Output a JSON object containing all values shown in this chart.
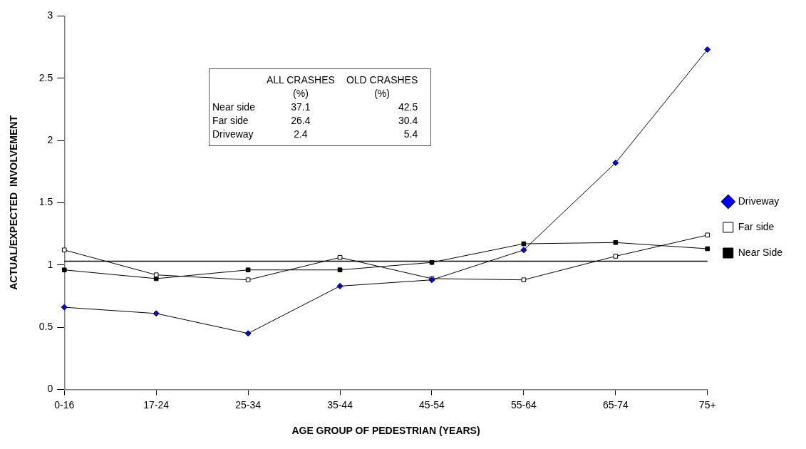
{
  "chart_data": {
    "type": "line",
    "xlabel": "AGE GROUP OF PEDESTRIAN (YEARS)",
    "ylabel": "ACTUAL/EXPECTED  INVOLVEMENT",
    "categories": [
      "0-16",
      "17-24",
      "25-34",
      "35-44",
      "45-54",
      "55-64",
      "65-74",
      "75+"
    ],
    "series": [
      {
        "name": "Near Side",
        "color": "#000000",
        "marker": "square",
        "values": [
          0.96,
          0.89,
          0.96,
          0.96,
          1.02,
          1.17,
          1.18,
          1.13
        ]
      },
      {
        "name": "Far side",
        "color": "#ffffff",
        "marker": "square",
        "values": [
          1.12,
          0.92,
          0.88,
          1.06,
          0.89,
          0.88,
          1.07,
          1.24
        ]
      },
      {
        "name": "Driveway",
        "color": "#0000ff",
        "marker": "diamond",
        "values": [
          0.66,
          0.61,
          0.45,
          0.83,
          0.88,
          1.12,
          1.82,
          2.73
        ]
      }
    ],
    "ylim": [
      0,
      3
    ],
    "yticks": [
      0,
      0.5,
      1,
      1.5,
      2,
      2.5,
      3
    ],
    "grid": false,
    "legend": "right",
    "line_style": "solid",
    "ref_lines": [
      {
        "axis": "y",
        "value": 1.03,
        "color": "#000000"
      }
    ],
    "annotations": [
      "ALL CRASHES",
      "OLD CRASHES",
      "(%)",
      "(%)",
      "Near side",
      "37.1",
      "42.5",
      "Far side",
      "26.4",
      "30.4",
      "Driveway",
      "2.4",
      "5.4"
    ]
  }
}
